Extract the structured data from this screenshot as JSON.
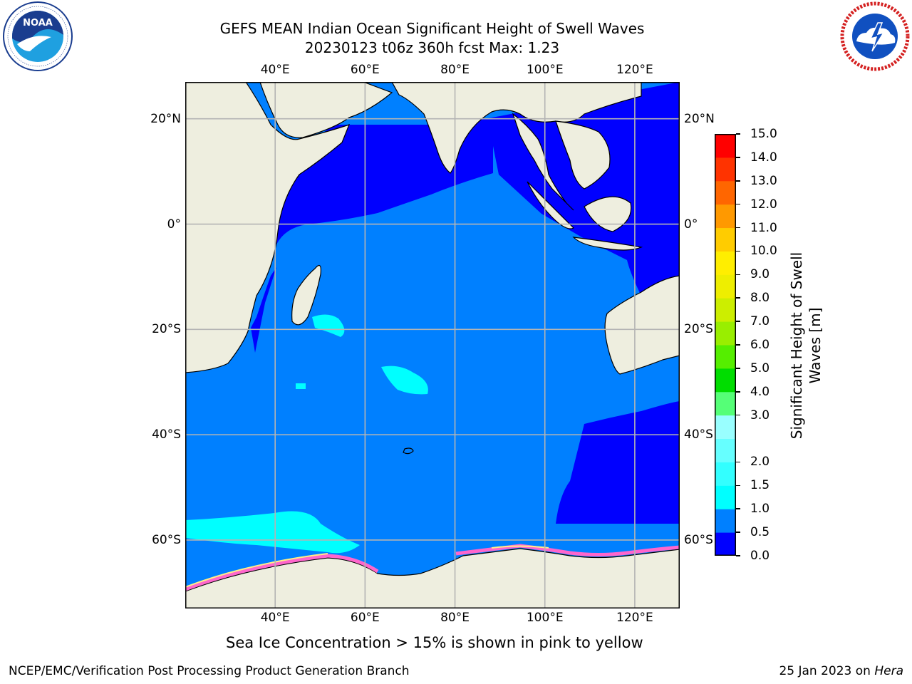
{
  "header": {
    "title_line1": "GEFS MEAN Indian Ocean Significant Height of Swell Waves",
    "title_line2": "20230123 t06z 360h fcst   Max: 1.23"
  },
  "logos": {
    "left": {
      "name": "noaa-logo",
      "text": "NOAA",
      "ring_text": "NATIONAL OCEANIC AND ATMOSPHERIC ADMINISTRATION · U.S. DEPARTMENT OF COMMERCE"
    },
    "right": {
      "name": "nws-logo",
      "ring_text": "NATIONAL WEATHER SERVICE"
    }
  },
  "map": {
    "lon_range": [
      20,
      130
    ],
    "lat_range": [
      -73,
      27
    ],
    "lon_ticks": [
      {
        "value": 40,
        "label": "40°E"
      },
      {
        "value": 60,
        "label": "60°E"
      },
      {
        "value": 80,
        "label": "80°E"
      },
      {
        "value": 100,
        "label": "100°E"
      },
      {
        "value": 120,
        "label": "120°E"
      }
    ],
    "lat_ticks": [
      {
        "value": 20,
        "label": "20°N"
      },
      {
        "value": 0,
        "label": "0°"
      },
      {
        "value": -20,
        "label": "20°S"
      },
      {
        "value": -40,
        "label": "40°S"
      },
      {
        "value": -60,
        "label": "60°S"
      }
    ],
    "colors": {
      "land": "#eeeedf",
      "ocean_main": "#0080ff",
      "ocean_low": "#0000ff",
      "swell_high": "#00ffff",
      "grid": "#b4b4b4",
      "ice_pink": "#ff66cc",
      "ice_yellow": "#ffee88"
    }
  },
  "colorbar": {
    "label": "Significant Height of Swell Waves [m]",
    "bounds": [
      "0.0",
      "0.5",
      "1.0",
      "1.5",
      "2.0",
      "2.5",
      "3.0",
      "4.0",
      "5.0",
      "6.0",
      "7.0",
      "8.0",
      "9.0",
      "10.0",
      "11.0",
      "12.0",
      "13.0",
      "14.0",
      "15.0"
    ],
    "tick_labels": [
      "0.0",
      "0.5",
      "1.0",
      "1.5",
      "2.0",
      "3.0",
      "4.0",
      "5.0",
      "6.0",
      "7.0",
      "8.0",
      "9.0",
      "10.0",
      "11.0",
      "12.0",
      "13.0",
      "14.0",
      "15.0"
    ],
    "colors": [
      "#0000ff",
      "#0080ff",
      "#00ffff",
      "#33ffff",
      "#66ffff",
      "#99ffff",
      "#55ff77",
      "#00dd00",
      "#55ee00",
      "#99ee00",
      "#ccee00",
      "#eeee00",
      "#ffee00",
      "#ffcc00",
      "#ff9900",
      "#ff6600",
      "#ff3300",
      "#ff0000"
    ]
  },
  "notes": {
    "ice": "Sea Ice Concentration > 15% is shown in pink to yellow"
  },
  "footer": {
    "left": "NCEP/EMC/Verification Post Processing Product Generation Branch",
    "right_date": "25 Jan 2023 on ",
    "right_host": "Hera"
  }
}
